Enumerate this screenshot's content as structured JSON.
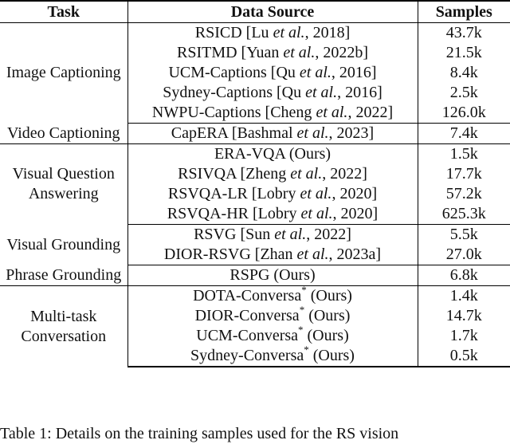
{
  "headers": {
    "task": "Task",
    "source": "Data Source",
    "samples": "Samples"
  },
  "groups": [
    {
      "task": "Image Captioning",
      "rows": [
        {
          "name": "RSICD [Lu ",
          "em": "et al.",
          "rest": ", 2018]",
          "samples": "43.7k"
        },
        {
          "name": "RSITMD [Yuan ",
          "em": "et al.",
          "rest": ", 2022b]",
          "samples": "21.5k"
        },
        {
          "name": "UCM-Captions [Qu ",
          "em": "et al.",
          "rest": ", 2016]",
          "samples": "8.4k"
        },
        {
          "name": "Sydney-Captions [Qu ",
          "em": "et al.",
          "rest": ", 2016]",
          "samples": "2.5k"
        },
        {
          "name": "NWPU-Captions [Cheng ",
          "em": "et al.",
          "rest": ", 2022]",
          "samples": "126.0k"
        }
      ]
    },
    {
      "task": "Video Captioning",
      "rows": [
        {
          "name": "CapERA [Bashmal ",
          "em": "et al.",
          "rest": ", 2023]",
          "samples": "7.4k"
        }
      ]
    },
    {
      "task": "Visual Question Answering",
      "rows": [
        {
          "name": "ERA-VQA (Ours)",
          "samples": "1.5k"
        },
        {
          "name": "RSIVQA [Zheng ",
          "em": "et al.",
          "rest": ", 2022]",
          "samples": "17.7k"
        },
        {
          "name": "RSVQA-LR [Lobry ",
          "em": "et al.",
          "rest": ", 2020]",
          "samples": "57.2k"
        },
        {
          "name": "RSVQA-HR [Lobry ",
          "em": "et al.",
          "rest": ", 2020]",
          "samples": "625.3k"
        }
      ]
    },
    {
      "task": "Visual Grounding",
      "rows": [
        {
          "name": "RSVG [Sun ",
          "em": "et al.",
          "rest": ", 2022]",
          "samples": "5.5k"
        },
        {
          "name": "DIOR-RSVG [Zhan ",
          "em": "et al.",
          "rest": ", 2023a]",
          "samples": "27.0k"
        }
      ]
    },
    {
      "task": "Phrase Grounding",
      "rows": [
        {
          "name": "RSPG (Ours)",
          "samples": "6.8k"
        }
      ]
    },
    {
      "task": "Multi-task Conversation",
      "rows": [
        {
          "name": "DOTA-Conversa",
          "sup": "*",
          "rest": " (Ours)",
          "samples": "1.4k"
        },
        {
          "name": "DIOR-Conversa",
          "sup": "*",
          "rest": " (Ours)",
          "samples": "14.7k"
        },
        {
          "name": "UCM-Conversa",
          "sup": "*",
          "rest": " (Ours)",
          "samples": "1.7k"
        },
        {
          "name": "Sydney-Conversa",
          "sup": "*",
          "rest": " (Ours)",
          "samples": "0.5k"
        }
      ]
    }
  ],
  "caption": "Table 1: Details on the training samples used for the RS vision"
}
